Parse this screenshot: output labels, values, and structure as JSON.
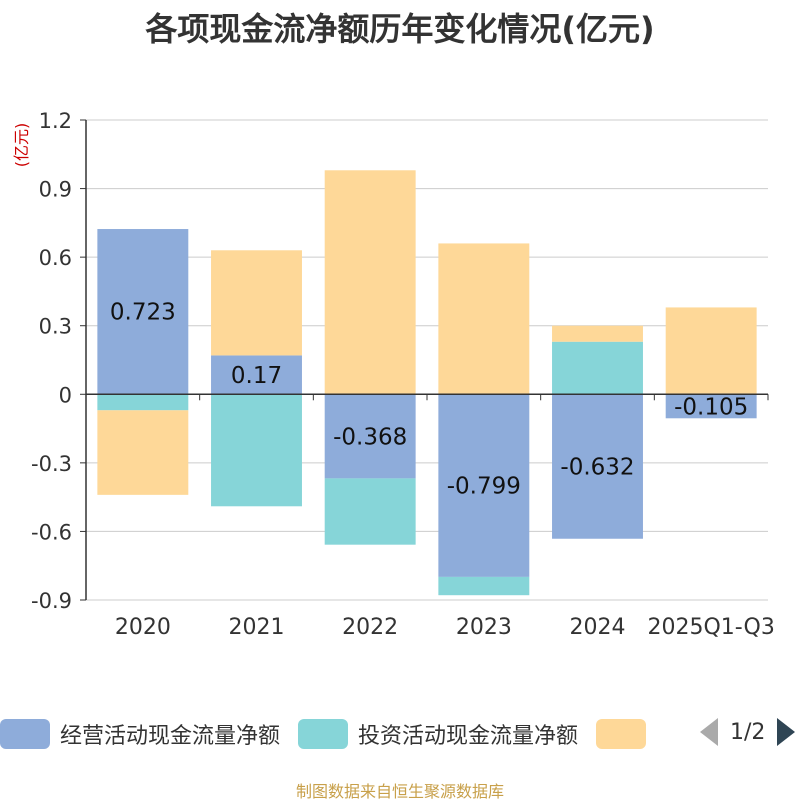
{
  "title": "各项现金流净额历年变化情况(亿元)",
  "unit_label": "(亿元)",
  "source": "制图数据来自恒生聚源数据库",
  "pager": {
    "text": "1/2"
  },
  "colors": {
    "operating": "#8eacda",
    "investing": "#86d5d8",
    "financing": "#fed898",
    "grid": "#cccccc",
    "axis": "#333333",
    "unit": "#cc0000"
  },
  "chart_data": {
    "type": "bar",
    "stacked": true,
    "categories": [
      "2020",
      "2021",
      "2022",
      "2023",
      "2024",
      "2025Q1-Q3"
    ],
    "ylim": [
      -0.9,
      1.2
    ],
    "yticks": [
      1.2,
      0.9,
      0.6,
      0.3,
      0,
      -0.3,
      -0.6,
      -0.9
    ],
    "ytick_labels": [
      "1.2",
      "0.9",
      "0.6",
      "0.3",
      "0",
      "-0.3",
      "-0.6",
      "-0.9"
    ],
    "series": [
      {
        "key": "operating",
        "name": "经营活动现金流量净额",
        "values": [
          0.723,
          0.17,
          -0.368,
          -0.799,
          -0.632,
          -0.105
        ],
        "labels": [
          "0.723",
          "0.17",
          "-0.368",
          "-0.799",
          "-0.632",
          "-0.105"
        ]
      },
      {
        "key": "investing",
        "name": "投资活动现金流量净额",
        "values": [
          -0.07,
          -0.49,
          -0.29,
          -0.08,
          0.23,
          0
        ]
      },
      {
        "key": "financing",
        "name": "",
        "values": [
          -0.37,
          0.46,
          0.98,
          0.66,
          0.07,
          0.38
        ]
      }
    ]
  }
}
